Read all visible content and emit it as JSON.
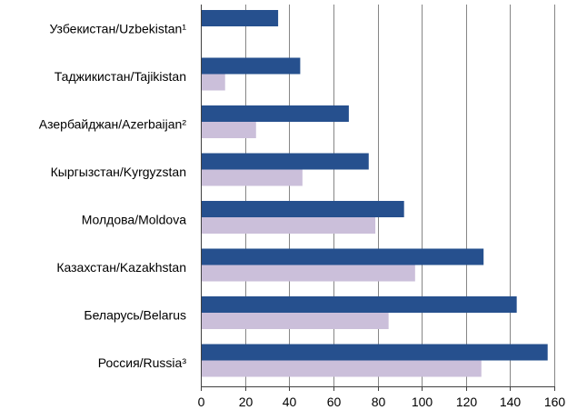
{
  "chart_data": {
    "type": "bar",
    "orientation": "horizontal",
    "categories": [
      "Узбекистан/Uzbekistan¹",
      "Таджикистан/Tajikistan",
      "Азербайджан/Azerbaijan²",
      "Кыргызстан/Kyrgyzstan",
      "Молдова/Moldova",
      "Казахстан/Kazakhstan",
      "Беларусь/Belarus",
      "Россия/Russia³"
    ],
    "series": [
      {
        "color": "#26508e",
        "values": [
          35,
          45,
          67,
          76,
          92,
          128,
          143,
          157
        ]
      },
      {
        "color": "#cbbfda",
        "values": [
          null,
          11,
          25,
          46,
          79,
          97,
          85,
          127
        ]
      }
    ],
    "xlim": [
      0,
      160
    ],
    "xticks": [
      0,
      20,
      40,
      60,
      80,
      100,
      120,
      140,
      160
    ],
    "grid": true,
    "legend": "none",
    "title": "",
    "xlabel": "",
    "ylabel": ""
  }
}
